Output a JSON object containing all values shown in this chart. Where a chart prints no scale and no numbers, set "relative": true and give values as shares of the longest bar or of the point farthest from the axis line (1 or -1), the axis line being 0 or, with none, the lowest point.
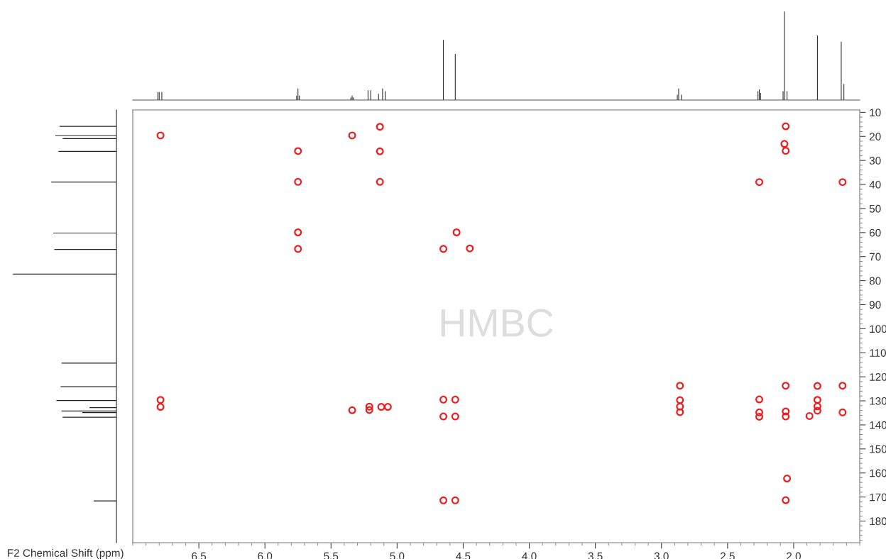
{
  "chart_data": [
    {
      "type": "bar",
      "relative": true,
      "xlim": [
        7.0,
        1.5
      ],
      "tick_labels": false,
      "grid": false,
      "x": [
        6.81,
        6.8,
        6.78,
        5.76,
        5.75,
        5.74,
        5.35,
        5.34,
        5.33,
        5.22,
        5.2,
        5.14,
        5.11,
        5.09,
        4.65,
        4.56,
        2.88,
        2.87,
        2.85,
        2.27,
        2.26,
        2.25,
        2.08,
        2.07,
        2.05,
        1.82,
        1.64,
        1.62
      ],
      "series": [
        {
          "color": "#333333",
          "values": [
            0.09,
            0.09,
            0.09,
            0.05,
            0.13,
            0.05,
            0.03,
            0.05,
            0.03,
            0.11,
            0.11,
            0.07,
            0.13,
            0.1,
            0.68,
            0.52,
            0.06,
            0.13,
            0.06,
            0.1,
            0.12,
            0.08,
            0.1,
            1.0,
            0.1,
            0.73,
            0.66,
            0.18
          ]
        }
      ]
    },
    {
      "type": "bar",
      "orientation": "horizontal",
      "relative": true,
      "ylim": [
        189,
        9
      ],
      "tick_labels": false,
      "grid": false,
      "x": [
        15.8,
        19.7,
        20.9,
        26.2,
        39.0,
        60.2,
        67.0,
        77.3,
        114.3,
        124.1,
        129.9,
        132.8,
        134.2,
        134.9,
        136.8,
        171.6
      ],
      "series": [
        {
          "color": "#222222",
          "values": [
            0.55,
            0.59,
            0.52,
            0.56,
            0.63,
            0.61,
            0.6,
            1.0,
            0.53,
            0.54,
            0.58,
            0.26,
            0.53,
            0.33,
            0.52,
            0.22
          ]
        }
      ]
    },
    {
      "type": "scatter",
      "xlabel": "F2 Chemical Shift (ppm)",
      "annotations": [
        "HMBC"
      ],
      "xlim": [
        7.0,
        1.5
      ],
      "ylim": [
        189,
        9
      ],
      "xticks": [
        6.5,
        {
          "value": 6,
          "label": "6.0"
        },
        5.5,
        {
          "value": 5,
          "label": "5.0"
        },
        4.5,
        {
          "value": 4,
          "label": "4.0"
        },
        3.5,
        {
          "value": 3,
          "label": "3.0"
        },
        2.5,
        {
          "value": 2,
          "label": "2.0"
        }
      ],
      "yticks": [
        10,
        20,
        30,
        40,
        50,
        60,
        70,
        80,
        90,
        100,
        110,
        120,
        130,
        140,
        150,
        160,
        170,
        180
      ],
      "grid": false,
      "marker": "circle",
      "x": [
        6.79,
        5.34,
        5.13,
        5.75,
        5.13,
        5.75,
        5.13,
        5.75,
        4.55,
        5.75,
        4.65,
        4.45,
        2.06,
        2.07,
        2.06,
        2.26,
        1.63,
        6.79,
        6.79,
        5.34,
        5.21,
        5.21,
        5.12,
        5.07,
        4.65,
        4.56,
        4.65,
        4.56,
        4.65,
        4.56,
        2.86,
        2.86,
        2.86,
        2.86,
        2.26,
        2.26,
        2.26,
        2.06,
        2.06,
        2.06,
        2.05,
        2.06,
        1.82,
        1.82,
        1.82,
        1.82,
        1.88,
        1.63,
        1.63
      ],
      "series": [
        {
          "color": "#ee1c1c",
          "values": [
            19.6,
            19.6,
            16.0,
            26.1,
            26.2,
            38.9,
            38.9,
            59.9,
            59.9,
            66.8,
            66.8,
            66.6,
            15.8,
            23.1,
            26.0,
            39.0,
            39.0,
            129.6,
            132.5,
            133.9,
            132.4,
            133.8,
            132.5,
            132.5,
            129.5,
            129.5,
            136.5,
            136.5,
            171.4,
            171.4,
            123.7,
            129.7,
            132.4,
            134.7,
            129.4,
            134.8,
            136.6,
            123.7,
            134.4,
            136.5,
            162.3,
            171.3,
            123.8,
            129.6,
            132.3,
            134.1,
            136.3,
            123.7,
            134.8
          ]
        }
      ]
    }
  ]
}
